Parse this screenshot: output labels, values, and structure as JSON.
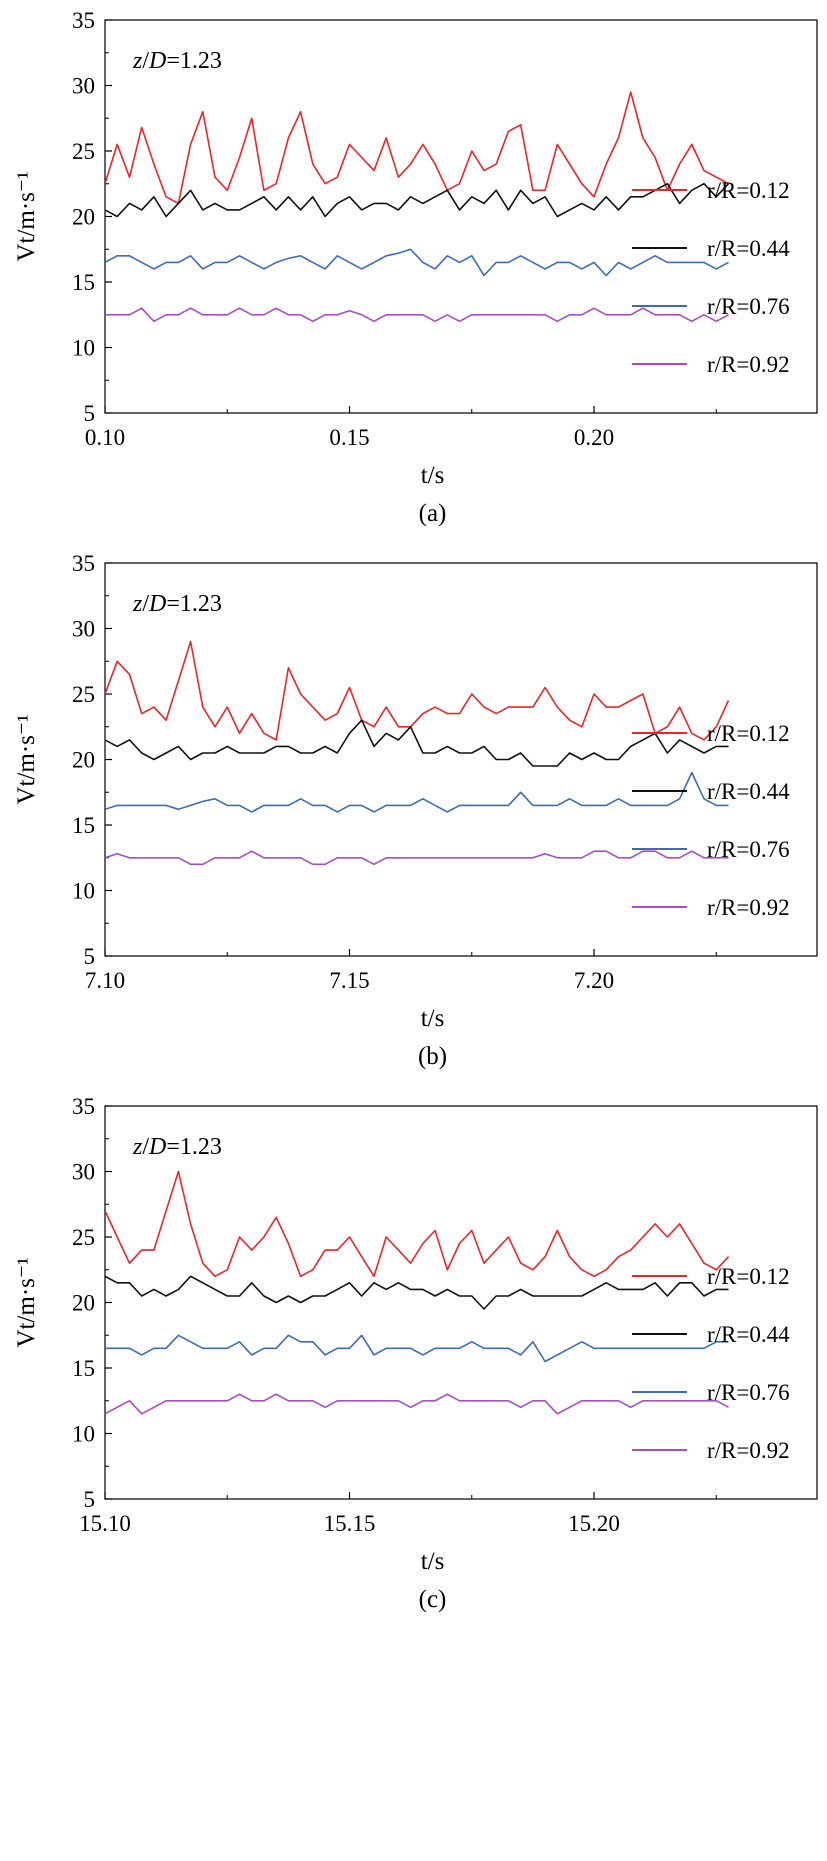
{
  "charts": [
    {
      "panel": "(a)",
      "annotation": {
        "prefix_var": "z",
        "sep": "/",
        "var": "D",
        "value": "=1.23"
      },
      "chart_data": {
        "type": "line",
        "xlabel": "t/s",
        "ylabel": "Vt/m·s⁻¹",
        "xlim": [
          0.1,
          0.2456
        ],
        "ylim": [
          5,
          35
        ],
        "x_ticks": [
          0.1,
          0.15,
          0.2
        ],
        "x_tick_labels": [
          "0.10",
          "0.15",
          "0.20"
        ],
        "y_ticks": [
          5,
          10,
          15,
          20,
          25,
          30,
          35
        ],
        "y_tick_labels": [
          "5",
          "10",
          "15",
          "20",
          "25",
          "30",
          "35"
        ],
        "legend_position": "right",
        "x_step": 0.0025,
        "x_start": 0.1,
        "series": [
          {
            "name": "r/R=0.12",
            "color": "#e8262a",
            "values": [
              22.5,
              25.5,
              23,
              26.8,
              24,
              21.5,
              21,
              25.5,
              28,
              23,
              22,
              24.5,
              27.5,
              22,
              22.5,
              26,
              28,
              24,
              22.5,
              23,
              25.5,
              24.5,
              23.5,
              26,
              23,
              24,
              25.5,
              24,
              22,
              22.5,
              25,
              23.5,
              24,
              26.5,
              27,
              22,
              22,
              25.5,
              24,
              22.5,
              21.5,
              24,
              26,
              29.5,
              26,
              24.5,
              22,
              24,
              25.5,
              23.5,
              23,
              22.5
            ]
          },
          {
            "name": "r/R=0.44",
            "color": "#111111",
            "values": [
              20.5,
              20,
              21,
              20.5,
              21.5,
              20,
              21,
              22,
              20.5,
              21,
              20.5,
              20.5,
              21,
              21.5,
              20.5,
              21.5,
              20.5,
              21.5,
              20,
              21,
              21.5,
              20.5,
              21,
              21,
              20.5,
              21.5,
              21,
              21.5,
              22,
              20.5,
              21.5,
              21,
              22,
              20.5,
              22,
              21,
              21.5,
              20,
              20.5,
              21,
              20.5,
              21.5,
              20.5,
              21.5,
              21.5,
              22,
              22.5,
              21,
              22,
              22.5,
              21.5,
              22.5
            ]
          },
          {
            "name": "r/R=0.76",
            "color": "#3d6bb8",
            "values": [
              16.5,
              17,
              17,
              16.5,
              16,
              16.5,
              16.5,
              17,
              16,
              16.5,
              16.5,
              17,
              16.5,
              16,
              16.5,
              16.8,
              17,
              16.5,
              16,
              17,
              16.5,
              16,
              16.5,
              17,
              17.2,
              17.5,
              16.5,
              16,
              17,
              16.5,
              17,
              15.5,
              16.5,
              16.5,
              17,
              16.5,
              16,
              16.5,
              16.5,
              16,
              16.5,
              15.5,
              16.5,
              16,
              16.5,
              17,
              16.5,
              16.5,
              16.5,
              16.5,
              16,
              16.5
            ]
          },
          {
            "name": "r/R=0.92",
            "color": "#a64ec2",
            "values": [
              12.5,
              12.5,
              12.5,
              13,
              12,
              12.5,
              12.5,
              13,
              12.5,
              12.5,
              12.5,
              13,
              12.5,
              12.5,
              13,
              12.5,
              12.5,
              12,
              12.5,
              12.5,
              12.8,
              12.5,
              12,
              12.5,
              12.5,
              12.5,
              12.5,
              12,
              12.5,
              12,
              12.5,
              12.5,
              12.5,
              12.5,
              12.5,
              12.5,
              12.5,
              12,
              12.5,
              12.5,
              13,
              12.5,
              12.5,
              12.5,
              13,
              12.5,
              12.5,
              12.5,
              12,
              12.5,
              12,
              12.5
            ]
          }
        ]
      }
    },
    {
      "panel": "(b)",
      "annotation": {
        "prefix_var": "z",
        "sep": "/",
        "var": "D",
        "value": "=1.23"
      },
      "chart_data": {
        "type": "line",
        "xlabel": "t/s",
        "ylabel": "Vt/m·s⁻¹",
        "xlim": [
          7.1,
          7.2456
        ],
        "ylim": [
          5,
          35
        ],
        "x_ticks": [
          7.1,
          7.15,
          7.2
        ],
        "x_tick_labels": [
          "7.10",
          "7.15",
          "7.20"
        ],
        "y_ticks": [
          5,
          10,
          15,
          20,
          25,
          30,
          35
        ],
        "y_tick_labels": [
          "5",
          "10",
          "15",
          "20",
          "25",
          "30",
          "35"
        ],
        "legend_position": "right",
        "x_step": 0.0025,
        "x_start": 7.1,
        "series": [
          {
            "name": "r/R=0.12",
            "color": "#e8262a",
            "values": [
              25,
              27.5,
              26.5,
              23.5,
              24,
              23,
              26,
              29,
              24,
              22.5,
              24,
              22,
              23.5,
              22,
              21.5,
              27,
              25,
              24,
              23,
              23.5,
              25.5,
              23,
              22.5,
              24,
              22.5,
              22.5,
              23.5,
              24,
              23.5,
              23.5,
              25,
              24,
              23.5,
              24,
              24,
              24,
              25.5,
              24,
              23,
              22.5,
              25,
              24,
              24,
              24.5,
              25,
              22,
              22.5,
              24,
              22,
              21.5,
              22.5,
              24.5
            ]
          },
          {
            "name": "r/R=0.44",
            "color": "#111111",
            "values": [
              21.5,
              21,
              21.5,
              20.5,
              20,
              20.5,
              21,
              20,
              20.5,
              20.5,
              21,
              20.5,
              20.5,
              20.5,
              21,
              21,
              20.5,
              20.5,
              21,
              20.5,
              22,
              23,
              21,
              22,
              21.5,
              22.5,
              20.5,
              20.5,
              21,
              20.5,
              20.5,
              21,
              20,
              20,
              20.5,
              19.5,
              19.5,
              19.5,
              20.5,
              20,
              20.5,
              20,
              20,
              21,
              21.5,
              22,
              20.5,
              21.5,
              21,
              20.5,
              21,
              21
            ]
          },
          {
            "name": "r/R=0.76",
            "color": "#3d6bb8",
            "values": [
              16.2,
              16.5,
              16.5,
              16.5,
              16.5,
              16.5,
              16.2,
              16.5,
              16.8,
              17,
              16.5,
              16.5,
              16,
              16.5,
              16.5,
              16.5,
              17,
              16.5,
              16.5,
              16,
              16.5,
              16.5,
              16,
              16.5,
              16.5,
              16.5,
              17,
              16.5,
              16,
              16.5,
              16.5,
              16.5,
              16.5,
              16.5,
              17.5,
              16.5,
              16.5,
              16.5,
              17,
              16.5,
              16.5,
              16.5,
              17,
              16.5,
              16.5,
              16.5,
              16.5,
              17,
              19,
              17,
              16.5,
              16.5
            ]
          },
          {
            "name": "r/R=0.92",
            "color": "#a64ec2",
            "values": [
              12.5,
              12.8,
              12.5,
              12.5,
              12.5,
              12.5,
              12.5,
              12,
              12,
              12.5,
              12.5,
              12.5,
              13,
              12.5,
              12.5,
              12.5,
              12.5,
              12,
              12,
              12.5,
              12.5,
              12.5,
              12,
              12.5,
              12.5,
              12.5,
              12.5,
              12.5,
              12.5,
              12.5,
              12.5,
              12.5,
              12.5,
              12.5,
              12.5,
              12.5,
              12.8,
              12.5,
              12.5,
              12.5,
              13,
              13,
              12.5,
              12.5,
              13,
              13,
              12.5,
              12.5,
              13,
              12.5,
              12.5,
              12.5
            ]
          }
        ]
      }
    },
    {
      "panel": "(c)",
      "annotation": {
        "prefix_var": "z",
        "sep": "/",
        "var": "D",
        "value": "=1.23"
      },
      "chart_data": {
        "type": "line",
        "xlabel": "t/s",
        "ylabel": "Vt/m·s⁻¹",
        "xlim": [
          15.1,
          15.2456
        ],
        "ylim": [
          5,
          35
        ],
        "x_ticks": [
          15.1,
          15.15,
          15.2
        ],
        "x_tick_labels": [
          "15.10",
          "15.15",
          "15.20"
        ],
        "y_ticks": [
          5,
          10,
          15,
          20,
          25,
          30,
          35
        ],
        "y_tick_labels": [
          "5",
          "10",
          "15",
          "20",
          "25",
          "30",
          "35"
        ],
        "legend_position": "right",
        "x_step": 0.0025,
        "x_start": 15.1,
        "series": [
          {
            "name": "r/R=0.12",
            "color": "#e8262a",
            "values": [
              27,
              25,
              23,
              24,
              24,
              27,
              30,
              26,
              23,
              22,
              22.5,
              25,
              24,
              25,
              26.5,
              24.5,
              22,
              22.5,
              24,
              24,
              25,
              23.5,
              22,
              25,
              24,
              23,
              24.5,
              25.5,
              22.5,
              24.5,
              25.5,
              23,
              24,
              25,
              23,
              22.5,
              23.5,
              25.5,
              23.5,
              22.5,
              22,
              22.5,
              23.5,
              24,
              25,
              26,
              25,
              26,
              24.5,
              23,
              22.5,
              23.5
            ]
          },
          {
            "name": "r/R=0.44",
            "color": "#111111",
            "values": [
              22,
              21.5,
              21.5,
              20.5,
              21,
              20.5,
              21,
              22,
              21.5,
              21,
              20.5,
              20.5,
              21.5,
              20.5,
              20,
              20.5,
              20,
              20.5,
              20.5,
              21,
              21.5,
              20.5,
              21.5,
              21,
              21.5,
              21,
              21,
              20.5,
              21,
              20.5,
              20.5,
              19.5,
              20.5,
              20.5,
              21,
              20.5,
              20.5,
              20.5,
              20.5,
              20.5,
              21,
              21.5,
              21,
              21,
              21,
              21.5,
              20.5,
              21.5,
              21.5,
              20.5,
              21,
              21
            ]
          },
          {
            "name": "r/R=0.76",
            "color": "#3d6bb8",
            "values": [
              16.5,
              16.5,
              16.5,
              16,
              16.5,
              16.5,
              17.5,
              17,
              16.5,
              16.5,
              16.5,
              17,
              16,
              16.5,
              16.5,
              17.5,
              17,
              17,
              16,
              16.5,
              16.5,
              17.5,
              16,
              16.5,
              16.5,
              16.5,
              16,
              16.5,
              16.5,
              16.5,
              17,
              16.5,
              16.5,
              16.5,
              16,
              17,
              15.5,
              16,
              16.5,
              17,
              16.5,
              16.5,
              16.5,
              16.5,
              16.5,
              16.5,
              16.5,
              16.5,
              16.5,
              16.5,
              17,
              17
            ]
          },
          {
            "name": "r/R=0.92",
            "color": "#a64ec2",
            "values": [
              11.5,
              12,
              12.5,
              11.5,
              12,
              12.5,
              12.5,
              12.5,
              12.5,
              12.5,
              12.5,
              13,
              12.5,
              12.5,
              13,
              12.5,
              12.5,
              12.5,
              12,
              12.5,
              12.5,
              12.5,
              12.5,
              12.5,
              12.5,
              12,
              12.5,
              12.5,
              13,
              12.5,
              12.5,
              12.5,
              12.5,
              12.5,
              12,
              12.5,
              12.5,
              11.5,
              12,
              12.5,
              12.5,
              12.5,
              12.5,
              12,
              12.5,
              12.5,
              12.5,
              12.5,
              12.5,
              12.5,
              12.5,
              12
            ]
          }
        ]
      }
    }
  ]
}
